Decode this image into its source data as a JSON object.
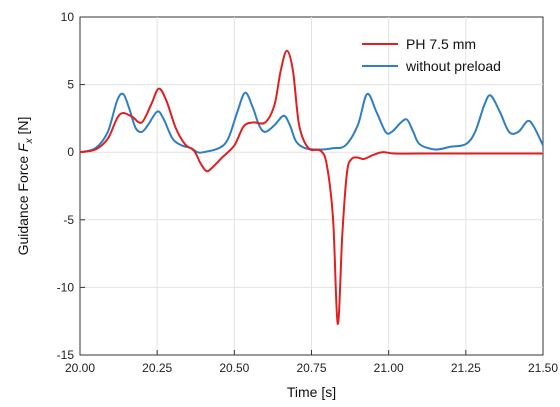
{
  "chart_data": {
    "type": "line",
    "xlabel": "Time [s]",
    "ylabel_main": "Guidance Force ",
    "ylabel_symbol": "F",
    "ylabel_subscript": "x",
    "ylabel_unit": " [N]",
    "xlim": [
      20.0,
      21.5
    ],
    "ylim": [
      -15,
      10
    ],
    "xticks": [
      "20.00",
      "20.25",
      "20.50",
      "20.75",
      "21.00",
      "21.25",
      "21.50"
    ],
    "yticks": [
      "10",
      "5",
      "0",
      "-5",
      "-10",
      "-15"
    ],
    "grid": true,
    "legend_position": "top-right",
    "series": [
      {
        "name": "PH 7.5 mm",
        "color": "#e02020",
        "points": [
          [
            20.0,
            0.0
          ],
          [
            20.05,
            0.2
          ],
          [
            20.09,
            1.0
          ],
          [
            20.12,
            2.5
          ],
          [
            20.14,
            2.9
          ],
          [
            20.17,
            2.6
          ],
          [
            20.2,
            2.2
          ],
          [
            20.23,
            3.5
          ],
          [
            20.255,
            4.7
          ],
          [
            20.28,
            3.8
          ],
          [
            20.31,
            1.8
          ],
          [
            20.34,
            0.6
          ],
          [
            20.37,
            0.1
          ],
          [
            20.39,
            -0.8
          ],
          [
            20.41,
            -1.4
          ],
          [
            20.43,
            -1.1
          ],
          [
            20.46,
            -0.4
          ],
          [
            20.5,
            0.5
          ],
          [
            20.53,
            1.9
          ],
          [
            20.56,
            2.2
          ],
          [
            20.6,
            2.2
          ],
          [
            20.63,
            3.5
          ],
          [
            20.65,
            6.0
          ],
          [
            20.67,
            7.5
          ],
          [
            20.69,
            6.0
          ],
          [
            20.71,
            2.0
          ],
          [
            20.74,
            0.3
          ],
          [
            20.78,
            0.1
          ],
          [
            20.8,
            -1.0
          ],
          [
            20.82,
            -5.0
          ],
          [
            20.835,
            -12.7
          ],
          [
            20.85,
            -6.0
          ],
          [
            20.865,
            -1.5
          ],
          [
            20.88,
            -0.5
          ],
          [
            20.9,
            -0.4
          ],
          [
            20.92,
            -0.5
          ],
          [
            20.95,
            -0.2
          ],
          [
            20.98,
            0.0
          ],
          [
            21.02,
            -0.1
          ],
          [
            21.1,
            -0.1
          ],
          [
            21.3,
            -0.1
          ],
          [
            21.5,
            -0.1
          ]
        ]
      },
      {
        "name": "without preload",
        "color": "#2f7ec5",
        "points": [
          [
            20.0,
            0.0
          ],
          [
            20.05,
            0.3
          ],
          [
            20.09,
            1.5
          ],
          [
            20.12,
            3.8
          ],
          [
            20.14,
            4.3
          ],
          [
            20.16,
            3.2
          ],
          [
            20.18,
            1.8
          ],
          [
            20.2,
            1.5
          ],
          [
            20.22,
            2.0
          ],
          [
            20.25,
            3.0
          ],
          [
            20.27,
            2.5
          ],
          [
            20.3,
            1.0
          ],
          [
            20.33,
            0.5
          ],
          [
            20.36,
            0.3
          ],
          [
            20.38,
            0.0
          ],
          [
            20.4,
            0.0
          ],
          [
            20.45,
            0.3
          ],
          [
            20.48,
            1.0
          ],
          [
            20.51,
            3.0
          ],
          [
            20.535,
            4.4
          ],
          [
            20.56,
            3.3
          ],
          [
            20.58,
            2.0
          ],
          [
            20.6,
            1.5
          ],
          [
            20.63,
            2.0
          ],
          [
            20.66,
            2.7
          ],
          [
            20.68,
            2.0
          ],
          [
            20.7,
            0.8
          ],
          [
            20.73,
            0.3
          ],
          [
            20.78,
            0.2
          ],
          [
            20.82,
            0.3
          ],
          [
            20.86,
            0.5
          ],
          [
            20.9,
            2.0
          ],
          [
            20.93,
            4.3
          ],
          [
            20.96,
            3.0
          ],
          [
            20.99,
            1.5
          ],
          [
            21.01,
            1.5
          ],
          [
            21.04,
            2.2
          ],
          [
            21.06,
            2.4
          ],
          [
            21.08,
            1.5
          ],
          [
            21.1,
            0.6
          ],
          [
            21.15,
            0.2
          ],
          [
            21.2,
            0.4
          ],
          [
            21.25,
            0.6
          ],
          [
            21.28,
            1.5
          ],
          [
            21.31,
            3.5
          ],
          [
            21.33,
            4.2
          ],
          [
            21.36,
            3.0
          ],
          [
            21.39,
            1.5
          ],
          [
            21.42,
            1.5
          ],
          [
            21.45,
            2.3
          ],
          [
            21.47,
            1.9
          ],
          [
            21.5,
            0.5
          ]
        ]
      }
    ]
  }
}
